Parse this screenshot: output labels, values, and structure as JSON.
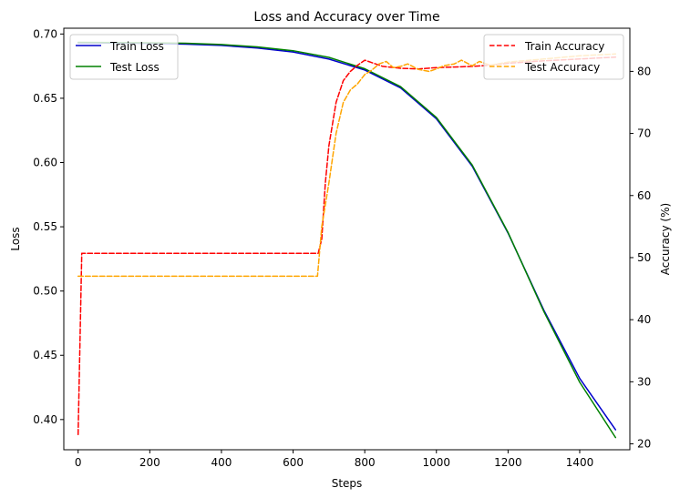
{
  "chart_data": {
    "type": "line",
    "title": "Loss and Accuracy over Time",
    "xlabel": "Steps",
    "ylabel_left": "Loss",
    "ylabel_right": "Accuracy (%)",
    "xlim": [
      -40,
      1540
    ],
    "ylim_left": [
      0.3765,
      0.7045
    ],
    "ylim_right": [
      19.05,
      86.95
    ],
    "x_ticks": [
      0,
      200,
      400,
      600,
      800,
      1000,
      1200,
      1400
    ],
    "y_left_ticks": [
      0.4,
      0.45,
      0.5,
      0.55,
      0.6,
      0.65,
      0.7
    ],
    "y_right_ticks": [
      20,
      30,
      40,
      50,
      60,
      70,
      80
    ],
    "grid": false,
    "legend_left": {
      "placement": "top-left",
      "entries": [
        "Train Loss",
        "Test Loss"
      ]
    },
    "legend_right": {
      "placement": "top-right",
      "entries": [
        "Train Accuracy",
        "Test Accuracy"
      ]
    },
    "series": [
      {
        "name": "Train Loss",
        "axis": "left",
        "color": "#0000cc",
        "style": "solid",
        "x": [
          0,
          100,
          200,
          300,
          400,
          500,
          600,
          700,
          800,
          900,
          1000,
          1100,
          1200,
          1300,
          1400,
          1500
        ],
        "y": [
          0.6931,
          0.693,
          0.6927,
          0.6921,
          0.6911,
          0.6891,
          0.686,
          0.6805,
          0.672,
          0.658,
          0.634,
          0.597,
          0.545,
          0.485,
          0.432,
          0.392
        ]
      },
      {
        "name": "Test Loss",
        "axis": "left",
        "color": "#008000",
        "style": "solid",
        "x": [
          0,
          100,
          200,
          300,
          400,
          500,
          600,
          700,
          800,
          900,
          1000,
          1100,
          1200,
          1300,
          1400,
          1500
        ],
        "y": [
          0.6935,
          0.6934,
          0.6932,
          0.6928,
          0.6918,
          0.69,
          0.687,
          0.6818,
          0.673,
          0.659,
          0.635,
          0.598,
          0.5455,
          0.484,
          0.429,
          0.386
        ]
      },
      {
        "name": "Train Accuracy",
        "axis": "right",
        "color": "#ff0000",
        "style": "dashed",
        "x": [
          0,
          10,
          20,
          100,
          200,
          300,
          400,
          500,
          600,
          670,
          680,
          690,
          700,
          720,
          740,
          760,
          780,
          800,
          820,
          850,
          900,
          950,
          1000,
          1050,
          1100,
          1150,
          1200,
          1300,
          1400,
          1500
        ],
        "y": [
          21.5,
          50.7,
          50.7,
          50.7,
          50.7,
          50.7,
          50.7,
          50.7,
          50.7,
          50.7,
          53.0,
          62.0,
          68.0,
          75.0,
          78.5,
          80.0,
          81.0,
          81.8,
          81.4,
          80.8,
          80.5,
          80.4,
          80.6,
          80.7,
          80.8,
          81.0,
          81.3,
          81.7,
          82.0,
          82.3
        ]
      },
      {
        "name": "Test Accuracy",
        "axis": "right",
        "color": "#ffa500",
        "style": "dashed",
        "x": [
          0,
          10,
          100,
          200,
          300,
          400,
          500,
          600,
          668,
          680,
          700,
          720,
          740,
          760,
          780,
          800,
          820,
          840,
          860,
          880,
          900,
          920,
          950,
          980,
          1000,
          1020,
          1050,
          1070,
          1100,
          1120,
          1150,
          1200,
          1300,
          1400,
          1500
        ],
        "y": [
          47.0,
          47.0,
          47.0,
          47.0,
          47.0,
          47.0,
          47.0,
          47.0,
          47.0,
          55.0,
          62.0,
          70.0,
          75.0,
          77.0,
          78.0,
          79.5,
          80.2,
          81.2,
          81.6,
          80.6,
          80.8,
          81.2,
          80.3,
          80.0,
          80.4,
          80.9,
          81.2,
          81.8,
          80.9,
          81.6,
          81.0,
          81.5,
          82.0,
          82.5,
          82.8
        ]
      }
    ]
  }
}
